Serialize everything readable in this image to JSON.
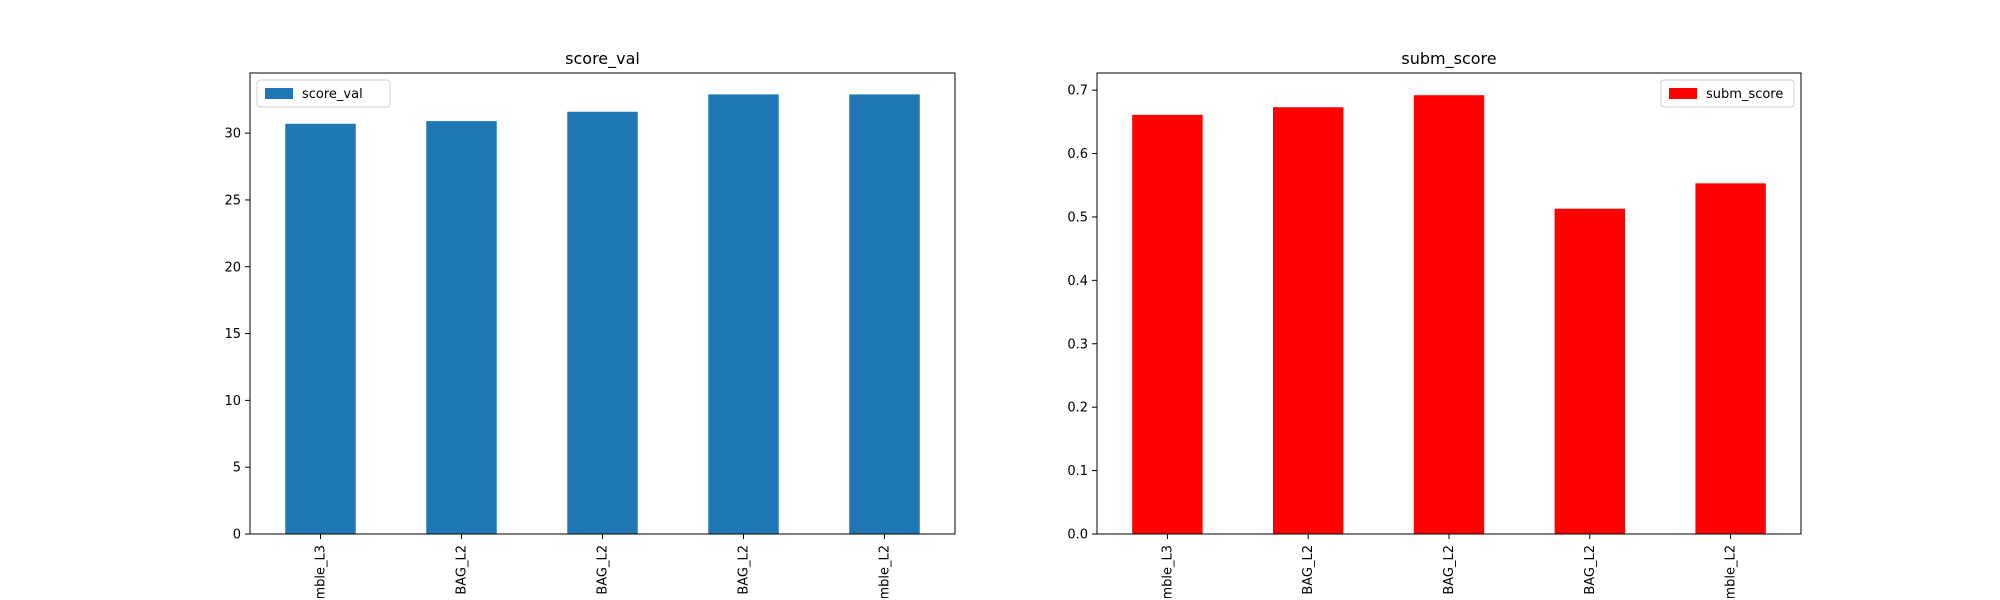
{
  "chart_data": [
    {
      "type": "bar",
      "title": "score_val",
      "categories": [
        "mble_L3",
        "BAG_L2",
        "BAG_L2",
        "BAG_L2",
        "mble_L2"
      ],
      "series": [
        {
          "name": "score_val",
          "values": [
            30.7,
            30.9,
            31.6,
            32.9,
            32.9
          ]
        }
      ],
      "xlabel": "",
      "ylabel": "",
      "ylim": [
        0,
        34.5
      ],
      "yticks": [
        "0",
        "5",
        "10",
        "15",
        "20",
        "25",
        "30"
      ],
      "legend": "top-left",
      "grid": false,
      "color": "#1f77b4"
    },
    {
      "type": "bar",
      "title": "subm_score",
      "categories": [
        "mble_L3",
        "BAG_L2",
        "BAG_L2",
        "BAG_L2",
        "mble_L2"
      ],
      "series": [
        {
          "name": "subm_score",
          "values": [
            0.661,
            0.673,
            0.692,
            0.513,
            0.553
          ]
        }
      ],
      "xlabel": "",
      "ylabel": "",
      "ylim": [
        0,
        0.727
      ],
      "yticks": [
        "0.0",
        "0.1",
        "0.2",
        "0.3",
        "0.4",
        "0.5",
        "0.6",
        "0.7"
      ],
      "legend": "top-right",
      "grid": false,
      "color": "#ff0000"
    }
  ]
}
